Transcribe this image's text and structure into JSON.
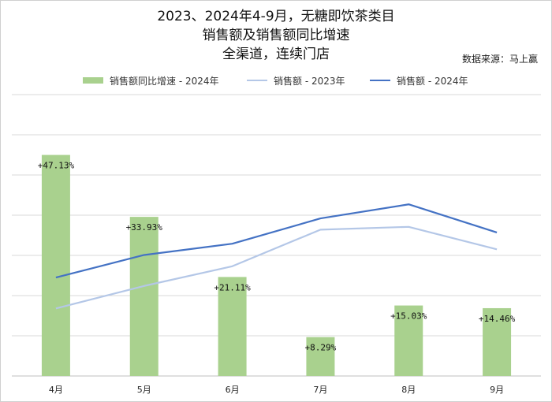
{
  "chart_data": {
    "type": "bar+line",
    "title_lines": [
      "2023、2024年4-9月，无糖即饮茶类目",
      "销售额及销售额同比增速",
      "全渠道，连续门店"
    ],
    "source": "数据来源：马上赢",
    "categories": [
      "4月",
      "5月",
      "6月",
      "7月",
      "8月",
      "9月"
    ],
    "bar_series": {
      "name": "销售额同比增速 - 2024年",
      "color": "#a9d18e",
      "values": [
        47.13,
        33.93,
        21.11,
        8.29,
        15.03,
        14.46
      ],
      "labels": [
        "+47.13%",
        "+33.93%",
        "+21.11%",
        "+8.29%",
        "+15.03%",
        "+14.46%"
      ]
    },
    "line_series": [
      {
        "name": "销售额 - 2023年",
        "color": "#b4c7e7",
        "values": [
          24,
          32,
          39,
          52,
          53,
          45
        ]
      },
      {
        "name": "销售额 - 2024年",
        "color": "#4472c4",
        "values": [
          35,
          43,
          47,
          56,
          61,
          51
        ]
      }
    ],
    "bar_ylim": [
      0,
      60
    ],
    "line_ylim": [
      0,
      100
    ],
    "grid": true,
    "legend_position": "top"
  }
}
